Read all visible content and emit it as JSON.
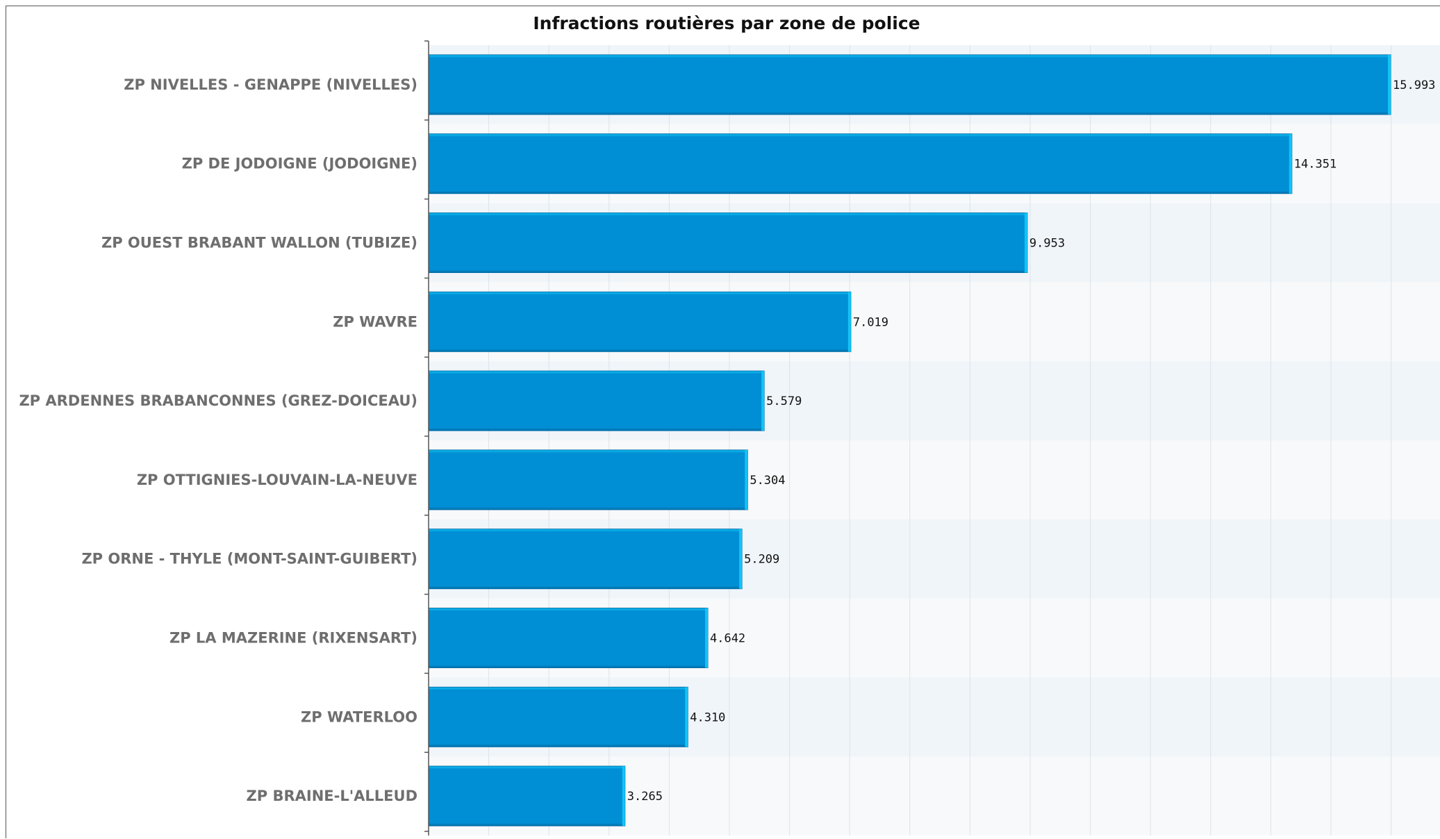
{
  "chart_data": {
    "type": "bar",
    "orientation": "horizontal",
    "title": "Infractions routières par zone de police",
    "xlabel": "",
    "ylabel": "",
    "categories": [
      "ZP NIVELLES - GENAPPE (NIVELLES)",
      "ZP DE JODOIGNE (JODOIGNE)",
      "ZP OUEST BRABANT WALLON (TUBIZE)",
      "ZP WAVRE",
      "ZP ARDENNES BRABANCONNES (GREZ-DOICEAU)",
      "ZP OTTIGNIES-LOUVAIN-LA-NEUVE",
      "ZP ORNE - THYLE (MONT-SAINT-GUIBERT)",
      "ZP LA MAZERINE (RIXENSART)",
      "ZP WATERLOO",
      "ZP BRAINE-L'ALLEUD"
    ],
    "values": [
      15993,
      14351,
      9953,
      7019,
      5579,
      5304,
      5209,
      4642,
      4310,
      3265
    ],
    "value_labels": [
      "15.993",
      "14.351",
      "9.953",
      "7.019",
      "5.579",
      "5.304",
      "5.209",
      "4.642",
      "4.310",
      "3.265"
    ],
    "xlim": [
      0,
      16500
    ],
    "grid": true,
    "legend": "none",
    "colors": {
      "bar": "#008fd5",
      "bar_highlight": "#13c3f6",
      "bar_shadow": "#006ea8",
      "band_a": "#f0f5fa",
      "band_b": "#f8f9fa",
      "grid": "#dde3e8",
      "axis": "#555555"
    }
  }
}
